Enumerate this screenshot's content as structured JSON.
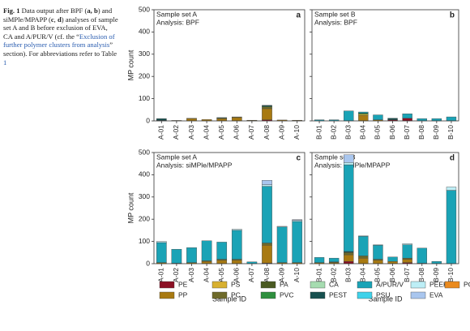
{
  "caption": [
    "Fig. 1",
    " Data output after BPF (",
    "a, b",
    ") and siMPle/MPAPP (",
    "c",
    ", ",
    "d",
    ") analyses of sample set A and B before exclusion of EVA, CA and A/PUR/V (cf. the “",
    "Exclusion of further polymer clusters from analysis",
    "” section). For abbreviations refer to Table ",
    "1"
  ],
  "chart_data": [
    {
      "type": "bar",
      "stacked": true,
      "panel": "a",
      "annotation": [
        "Sample set A",
        "Analysis: BPF"
      ],
      "y_label": "MP count",
      "categories": [
        "A-01",
        "A-02",
        "A-03",
        "A-04",
        "A-05",
        "A-06",
        "A-07",
        "A-08",
        "A-09",
        "A-10"
      ],
      "ylim": [
        0,
        500
      ],
      "yticks": [
        0,
        100,
        200,
        300,
        400,
        500
      ],
      "series": [
        {
          "name": "PE",
          "color": "#8b1024",
          "values": [
            2,
            0,
            0,
            0,
            0,
            0,
            0,
            5,
            0,
            0
          ]
        },
        {
          "name": "PP",
          "color": "#a87a12",
          "values": [
            0,
            2,
            10,
            6,
            10,
            15,
            3,
            50,
            4,
            3
          ]
        },
        {
          "name": "PS",
          "color": "#d8b030",
          "values": [
            0,
            0,
            2,
            0,
            0,
            0,
            0,
            0,
            0,
            0
          ]
        },
        {
          "name": "PC",
          "color": "#6e6a2a",
          "values": [
            0,
            0,
            0,
            0,
            3,
            3,
            0,
            8,
            0,
            0
          ]
        },
        {
          "name": "PA",
          "color": "#4a5a22",
          "values": [
            0,
            0,
            0,
            0,
            0,
            0,
            0,
            0,
            0,
            0
          ]
        },
        {
          "name": "PVC",
          "color": "#2e8f3e",
          "values": [
            0,
            0,
            0,
            0,
            0,
            0,
            0,
            3,
            0,
            0
          ]
        },
        {
          "name": "CA",
          "color": "#a6dcb0",
          "values": [
            0,
            0,
            0,
            0,
            0,
            0,
            0,
            0,
            0,
            0
          ]
        },
        {
          "name": "PEST",
          "color": "#17504f",
          "values": [
            8,
            0,
            0,
            0,
            0,
            0,
            0,
            4,
            0,
            0
          ]
        },
        {
          "name": "A/PUR/V",
          "color": "#1aa3b6",
          "values": [
            0,
            0,
            0,
            0,
            2,
            0,
            0,
            0,
            0,
            0
          ]
        },
        {
          "name": "PSU",
          "color": "#3fd2ea",
          "values": [
            0,
            0,
            0,
            0,
            0,
            0,
            0,
            0,
            0,
            0
          ]
        },
        {
          "name": "PEEK",
          "color": "#bdeef6",
          "values": [
            0,
            0,
            0,
            0,
            0,
            0,
            0,
            0,
            0,
            0
          ]
        },
        {
          "name": "EVA",
          "color": "#a9c6ee",
          "values": [
            0,
            0,
            0,
            0,
            0,
            0,
            0,
            0,
            0,
            0
          ]
        },
        {
          "name": "POM",
          "color": "#ea8a1e",
          "values": [
            0,
            0,
            0,
            0,
            0,
            0,
            0,
            0,
            0,
            0
          ]
        }
      ]
    },
    {
      "type": "bar",
      "stacked": true,
      "panel": "b",
      "annotation": [
        "Sample set B",
        "Analysis: BPF"
      ],
      "categories": [
        "B-01",
        "B-02",
        "B-03",
        "B-04",
        "B-05",
        "B-06",
        "B-07",
        "B-08",
        "B-09",
        "B-10"
      ],
      "ylim": [
        0,
        500
      ],
      "series": [
        {
          "name": "PE",
          "color": "#8b1024",
          "values": [
            0,
            0,
            0,
            0,
            0,
            5,
            12,
            0,
            0,
            0
          ]
        },
        {
          "name": "PP",
          "color": "#a87a12",
          "values": [
            0,
            0,
            0,
            25,
            5,
            0,
            0,
            0,
            0,
            0
          ]
        },
        {
          "name": "PS",
          "color": "#d8b030",
          "values": [
            0,
            0,
            0,
            5,
            0,
            0,
            0,
            0,
            0,
            0
          ]
        },
        {
          "name": "PC",
          "color": "#6e6a2a",
          "values": [
            0,
            0,
            0,
            0,
            0,
            0,
            0,
            0,
            0,
            0
          ]
        },
        {
          "name": "PA",
          "color": "#4a5a22",
          "values": [
            0,
            0,
            0,
            0,
            0,
            0,
            0,
            0,
            0,
            0
          ]
        },
        {
          "name": "PVC",
          "color": "#2e8f3e",
          "values": [
            0,
            0,
            0,
            5,
            0,
            0,
            0,
            0,
            0,
            0
          ]
        },
        {
          "name": "CA",
          "color": "#a6dcb0",
          "values": [
            0,
            0,
            0,
            0,
            0,
            0,
            0,
            0,
            0,
            0
          ]
        },
        {
          "name": "PEST",
          "color": "#17504f",
          "values": [
            0,
            0,
            0,
            0,
            0,
            7,
            0,
            0,
            0,
            0
          ]
        },
        {
          "name": "A/PUR/V",
          "color": "#1aa3b6",
          "values": [
            5,
            5,
            45,
            5,
            22,
            0,
            20,
            10,
            10,
            18
          ]
        },
        {
          "name": "PSU",
          "color": "#3fd2ea",
          "values": [
            0,
            0,
            0,
            0,
            0,
            0,
            0,
            0,
            0,
            0
          ]
        },
        {
          "name": "PEEK",
          "color": "#bdeef6",
          "values": [
            0,
            0,
            0,
            0,
            0,
            0,
            0,
            0,
            0,
            0
          ]
        },
        {
          "name": "EVA",
          "color": "#a9c6ee",
          "values": [
            0,
            0,
            0,
            0,
            0,
            0,
            0,
            0,
            0,
            0
          ]
        },
        {
          "name": "POM",
          "color": "#ea8a1e",
          "values": [
            0,
            0,
            0,
            0,
            0,
            0,
            0,
            0,
            0,
            0
          ]
        }
      ]
    },
    {
      "type": "bar",
      "stacked": true,
      "panel": "c",
      "annotation": [
        "Sample set A",
        "Analysis: siMPle/MPAPP"
      ],
      "y_label": "MP count",
      "x_label": "Sample ID",
      "categories": [
        "A-01",
        "A-02",
        "A-03",
        "A-04",
        "A-05",
        "A-06",
        "A-07",
        "A-08",
        "A-09",
        "A-10"
      ],
      "ylim": [
        0,
        500
      ],
      "yticks": [
        0,
        100,
        200,
        300,
        400,
        500
      ],
      "series": [
        {
          "name": "PE",
          "color": "#8b1024",
          "values": [
            0,
            0,
            0,
            0,
            0,
            0,
            0,
            3,
            0,
            0
          ]
        },
        {
          "name": "PP",
          "color": "#a87a12",
          "values": [
            5,
            2,
            5,
            10,
            15,
            15,
            0,
            80,
            5,
            5
          ]
        },
        {
          "name": "PS",
          "color": "#d8b030",
          "values": [
            0,
            0,
            0,
            0,
            0,
            0,
            0,
            0,
            0,
            0
          ]
        },
        {
          "name": "PC",
          "color": "#6e6a2a",
          "values": [
            0,
            0,
            0,
            3,
            5,
            5,
            0,
            10,
            0,
            0
          ]
        },
        {
          "name": "PA",
          "color": "#4a5a22",
          "values": [
            0,
            0,
            0,
            0,
            0,
            0,
            0,
            0,
            0,
            0
          ]
        },
        {
          "name": "PVC",
          "color": "#2e8f3e",
          "values": [
            0,
            0,
            0,
            0,
            0,
            0,
            0,
            0,
            0,
            0
          ]
        },
        {
          "name": "CA",
          "color": "#a6dcb0",
          "values": [
            0,
            0,
            0,
            0,
            0,
            0,
            0,
            0,
            0,
            0
          ]
        },
        {
          "name": "PEST",
          "color": "#17504f",
          "values": [
            0,
            0,
            0,
            0,
            0,
            0,
            0,
            0,
            0,
            0
          ]
        },
        {
          "name": "A/PUR/V",
          "color": "#1aa3b6",
          "values": [
            90,
            63,
            67,
            90,
            77,
            130,
            8,
            255,
            160,
            185
          ]
        },
        {
          "name": "PSU",
          "color": "#3fd2ea",
          "values": [
            0,
            0,
            0,
            0,
            0,
            0,
            0,
            0,
            0,
            0
          ]
        },
        {
          "name": "PEEK",
          "color": "#bdeef6",
          "values": [
            5,
            0,
            0,
            0,
            0,
            5,
            0,
            7,
            3,
            5
          ]
        },
        {
          "name": "EVA",
          "color": "#a9c6ee",
          "values": [
            0,
            0,
            0,
            0,
            0,
            0,
            0,
            20,
            0,
            3
          ]
        },
        {
          "name": "POM",
          "color": "#ea8a1e",
          "values": [
            0,
            0,
            0,
            0,
            0,
            0,
            0,
            0,
            0,
            0
          ]
        }
      ]
    },
    {
      "type": "bar",
      "stacked": true,
      "panel": "d",
      "annotation": [
        "Sample set B",
        "Analysis: siMPle/MPAPP"
      ],
      "x_label": "Sample ID",
      "categories": [
        "B-01",
        "B-02",
        "B-03",
        "B-04",
        "B-05",
        "B-06",
        "B-07",
        "B-08",
        "B-09",
        "B-10"
      ],
      "ylim": [
        0,
        500
      ],
      "series": [
        {
          "name": "PE",
          "color": "#8b1024",
          "values": [
            0,
            0,
            10,
            0,
            0,
            0,
            5,
            0,
            0,
            0
          ]
        },
        {
          "name": "PP",
          "color": "#a87a12",
          "values": [
            5,
            5,
            30,
            25,
            15,
            10,
            15,
            2,
            0,
            0
          ]
        },
        {
          "name": "PS",
          "color": "#d8b030",
          "values": [
            0,
            0,
            0,
            0,
            0,
            0,
            0,
            0,
            0,
            0
          ]
        },
        {
          "name": "PC",
          "color": "#6e6a2a",
          "values": [
            0,
            3,
            10,
            10,
            5,
            0,
            5,
            0,
            0,
            0
          ]
        },
        {
          "name": "PA",
          "color": "#4a5a22",
          "values": [
            0,
            0,
            0,
            0,
            0,
            0,
            0,
            0,
            0,
            0
          ]
        },
        {
          "name": "PVC",
          "color": "#2e8f3e",
          "values": [
            0,
            0,
            0,
            0,
            0,
            0,
            0,
            0,
            0,
            0
          ]
        },
        {
          "name": "CA",
          "color": "#a6dcb0",
          "values": [
            0,
            0,
            0,
            0,
            0,
            0,
            0,
            0,
            0,
            0
          ]
        },
        {
          "name": "PEST",
          "color": "#17504f",
          "values": [
            0,
            0,
            5,
            0,
            0,
            0,
            0,
            0,
            0,
            0
          ]
        },
        {
          "name": "A/PUR/V",
          "color": "#1aa3b6",
          "values": [
            23,
            17,
            390,
            88,
            63,
            20,
            60,
            68,
            10,
            330
          ]
        },
        {
          "name": "PSU",
          "color": "#3fd2ea",
          "values": [
            0,
            0,
            0,
            0,
            0,
            0,
            0,
            0,
            0,
            0
          ]
        },
        {
          "name": "PEEK",
          "color": "#bdeef6",
          "values": [
            0,
            0,
            10,
            2,
            2,
            0,
            5,
            0,
            0,
            15
          ]
        },
        {
          "name": "EVA",
          "color": "#a9c6ee",
          "values": [
            0,
            0,
            35,
            0,
            0,
            0,
            0,
            0,
            0,
            0
          ]
        },
        {
          "name": "POM",
          "color": "#ea8a1e",
          "values": [
            0,
            0,
            0,
            0,
            0,
            0,
            0,
            0,
            0,
            0
          ]
        }
      ]
    }
  ]
}
